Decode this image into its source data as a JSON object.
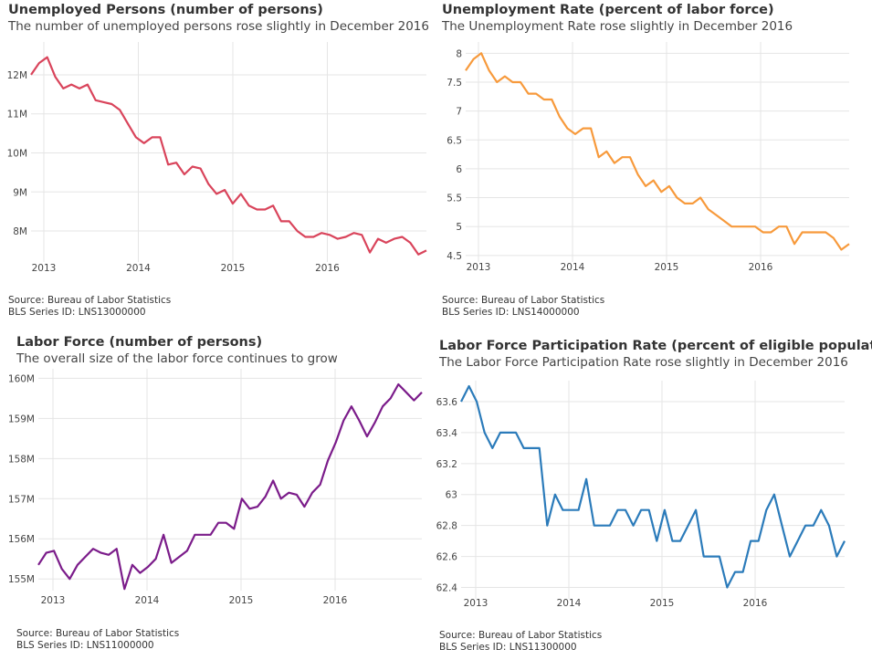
{
  "panels": [
    {
      "title": "Unemployed Persons (number of persons)",
      "subtitle": "The number of unemployed persons rose slightly in December 2016",
      "source": "Source: Bureau of Labor Statistics",
      "series_id": "BLS Series ID: LNS13000000"
    },
    {
      "title": "Unemployment Rate (percent of labor force)",
      "subtitle": "The Unemployment Rate rose slightly in December 2016",
      "source": "Source: Bureau of Labor Statistics",
      "series_id": "BLS Series ID: LNS14000000"
    },
    {
      "title": "Labor Force (number of persons)",
      "subtitle": "The overall size of the labor force continues to grow",
      "source": "Source: Bureau of Labor Statistics",
      "series_id": "BLS Series ID: LNS11000000"
    },
    {
      "title": "Labor Force Participation Rate (percent of eligible population)",
      "subtitle": "The Labor Force Participation Rate rose slightly in December 2016",
      "source": "Source: Bureau of Labor Statistics",
      "series_id": "BLS Series ID: LNS11300000"
    }
  ],
  "chart_data": [
    {
      "type": "line",
      "title": "Unemployed Persons (number of persons)",
      "color": "#d9445b",
      "x_ticks": [
        "2013",
        "2014",
        "2015",
        "2016"
      ],
      "y_ticks": [
        8000000,
        9000000,
        10000000,
        11000000,
        12000000
      ],
      "y_tick_labels": [
        "8M",
        "9M",
        "10M",
        "11M",
        "12M"
      ],
      "ylim": [
        7300000,
        12700000
      ],
      "grid": true,
      "x_start": "2012-11",
      "x_end": "2016-12",
      "values": [
        12000000,
        12300000,
        12450000,
        11950000,
        11650000,
        11750000,
        11650000,
        11750000,
        11350000,
        11300000,
        11250000,
        11100000,
        10750000,
        10400000,
        10250000,
        10400000,
        10400000,
        9700000,
        9750000,
        9450000,
        9650000,
        9600000,
        9200000,
        8950000,
        9050000,
        8700000,
        8950000,
        8650000,
        8550000,
        8550000,
        8650000,
        8250000,
        8250000,
        8000000,
        7850000,
        7850000,
        7950000,
        7900000,
        7800000,
        7850000,
        7950000,
        7900000,
        7450000,
        7800000,
        7700000,
        7800000,
        7850000,
        7700000,
        7400000,
        7500000
      ]
    },
    {
      "type": "line",
      "title": "Unemployment Rate (percent of labor force)",
      "color": "#f79a3c",
      "x_ticks": [
        "2013",
        "2014",
        "2015",
        "2016"
      ],
      "y_ticks": [
        4.5,
        5,
        5.5,
        6,
        6.5,
        7,
        7.5,
        8
      ],
      "y_tick_labels": [
        "4.5",
        "5",
        "5.5",
        "6",
        "6.5",
        "7",
        "7.5",
        "8"
      ],
      "ylim": [
        4.45,
        8.1
      ],
      "grid": true,
      "x_start": "2012-11",
      "x_end": "2016-12",
      "values": [
        7.7,
        7.9,
        8.0,
        7.7,
        7.5,
        7.6,
        7.5,
        7.5,
        7.3,
        7.3,
        7.2,
        7.2,
        6.9,
        6.7,
        6.6,
        6.7,
        6.7,
        6.2,
        6.3,
        6.1,
        6.2,
        6.2,
        5.9,
        5.7,
        5.8,
        5.6,
        5.7,
        5.5,
        5.4,
        5.4,
        5.5,
        5.3,
        5.2,
        5.1,
        5.0,
        5.0,
        5.0,
        5.0,
        4.9,
        4.9,
        5.0,
        5.0,
        4.7,
        4.9,
        4.9,
        4.9,
        4.9,
        4.8,
        4.6,
        4.7
      ]
    },
    {
      "type": "line",
      "title": "Labor Force (number of persons)",
      "color": "#7b1c8a",
      "x_ticks": [
        "2013",
        "2014",
        "2015",
        "2016"
      ],
      "y_ticks": [
        155000000,
        156000000,
        157000000,
        158000000,
        159000000,
        160000000
      ],
      "y_tick_labels": [
        "155M",
        "156M",
        "157M",
        "158M",
        "159M",
        "160M"
      ],
      "ylim": [
        154800000,
        160100000
      ],
      "grid": true,
      "x_start": "2012-10",
      "x_end": "2016-12",
      "values": [
        155350000,
        155650000,
        155700000,
        155250000,
        155000000,
        155350000,
        155550000,
        155750000,
        155650000,
        155600000,
        155750000,
        154750000,
        155350000,
        155150000,
        155300000,
        155500000,
        156100000,
        155400000,
        155550000,
        155700000,
        156100000,
        156100000,
        156100000,
        156400000,
        156400000,
        156250000,
        157000000,
        156750000,
        156800000,
        157050000,
        157450000,
        157000000,
        157150000,
        157100000,
        156800000,
        157150000,
        157350000,
        157950000,
        158400000,
        158950000,
        159300000,
        158950000,
        158550000,
        158900000,
        159300000,
        159500000,
        159850000,
        159650000,
        159450000,
        159650000
      ]
    },
    {
      "type": "line",
      "title": "Labor Force Participation Rate (percent of eligible population)",
      "color": "#2b7bba",
      "x_ticks": [
        "2013",
        "2014",
        "2015",
        "2016"
      ],
      "y_ticks": [
        62.4,
        62.6,
        62.8,
        63,
        63.2,
        63.4,
        63.6
      ],
      "y_tick_labels": [
        "62.4",
        "62.6",
        "62.8",
        "63",
        "63.2",
        "63.4",
        "63.6"
      ],
      "ylim": [
        62.35,
        63.7
      ],
      "grid": true,
      "x_start": "2012-10",
      "x_end": "2016-12",
      "values": [
        63.6,
        63.7,
        63.6,
        63.4,
        63.3,
        63.4,
        63.4,
        63.4,
        63.3,
        63.3,
        63.3,
        62.8,
        63.0,
        62.9,
        62.9,
        62.9,
        63.1,
        62.8,
        62.8,
        62.8,
        62.9,
        62.9,
        62.8,
        62.9,
        62.9,
        62.7,
        62.9,
        62.7,
        62.7,
        62.8,
        62.9,
        62.6,
        62.6,
        62.6,
        62.4,
        62.5,
        62.5,
        62.7,
        62.7,
        62.9,
        63.0,
        62.8,
        62.6,
        62.7,
        62.8,
        62.8,
        62.9,
        62.8,
        62.6,
        62.7
      ]
    }
  ]
}
